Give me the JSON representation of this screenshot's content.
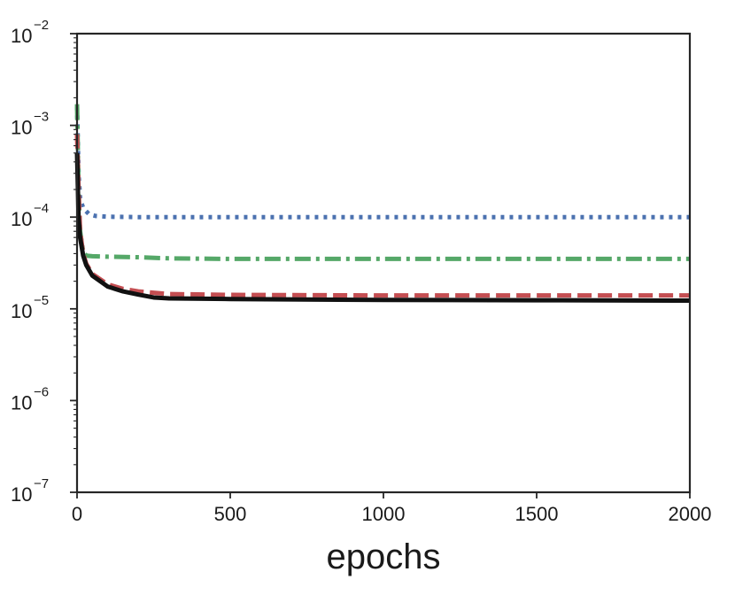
{
  "chart_data": {
    "type": "line",
    "title": "",
    "xlabel": "epochs",
    "ylabel": "",
    "xlim": [
      0,
      2000
    ],
    "ylim": [
      1e-07,
      0.01
    ],
    "yscale": "log",
    "grid": false,
    "x_ticks": [
      {
        "value": 0,
        "label": "0"
      },
      {
        "value": 500,
        "label": "500"
      },
      {
        "value": 1000,
        "label": "1000"
      },
      {
        "value": 1500,
        "label": "1500"
      },
      {
        "value": 2000,
        "label": "2000"
      }
    ],
    "y_ticks": [
      {
        "value": 1e-07,
        "base": "10",
        "exp": "−7"
      },
      {
        "value": 1e-06,
        "base": "10",
        "exp": "−6"
      },
      {
        "value": 1e-05,
        "base": "10",
        "exp": "−5"
      },
      {
        "value": 0.0001,
        "base": "10",
        "exp": "−4"
      },
      {
        "value": 0.001,
        "base": "10",
        "exp": "−3"
      },
      {
        "value": 0.01,
        "base": "10",
        "exp": "−2"
      }
    ],
    "series": [
      {
        "color": "#4c72b0",
        "dash": "dotted",
        "x": [
          0,
          5,
          10,
          20,
          40,
          60,
          100,
          200,
          500,
          1000,
          1500,
          2000
        ],
        "y": [
          0.0016,
          0.0003,
          0.00016,
          0.000125,
          0.000107,
          0.000103,
          0.000101,
          0.0001,
          0.0001,
          0.0001,
          0.0001,
          0.0001
        ]
      },
      {
        "color": "#55a868",
        "dash": "dashdot",
        "x": [
          0,
          5,
          10,
          20,
          30,
          50,
          100,
          200,
          300,
          500,
          1000,
          1500,
          2000
        ],
        "y": [
          0.0017,
          0.0002,
          7e-05,
          4.2e-05,
          3.8e-05,
          3.75e-05,
          3.7e-05,
          3.65e-05,
          3.55e-05,
          3.5e-05,
          3.5e-05,
          3.5e-05,
          3.5e-05
        ]
      },
      {
        "color": "#c44e52",
        "dash": "dashed",
        "x": [
          0,
          5,
          10,
          20,
          30,
          50,
          100,
          150,
          200,
          300,
          500,
          1000,
          1500,
          2000
        ],
        "y": [
          0.0008,
          0.0002,
          7e-05,
          4e-05,
          3.1e-05,
          2.4e-05,
          1.85e-05,
          1.65e-05,
          1.55e-05,
          1.45e-05,
          1.42e-05,
          1.4e-05,
          1.4e-05,
          1.4e-05
        ]
      },
      {
        "color": "#111111",
        "dash": "solid",
        "x": [
          0,
          5,
          10,
          20,
          30,
          50,
          100,
          150,
          200,
          250,
          300,
          500,
          1000,
          1500,
          2000
        ],
        "y": [
          0.0005,
          0.0001,
          6e-05,
          3.8e-05,
          3e-05,
          2.3e-05,
          1.75e-05,
          1.55e-05,
          1.43e-05,
          1.33e-05,
          1.3e-05,
          1.28e-05,
          1.25e-05,
          1.24e-05,
          1.23e-05
        ]
      }
    ]
  }
}
